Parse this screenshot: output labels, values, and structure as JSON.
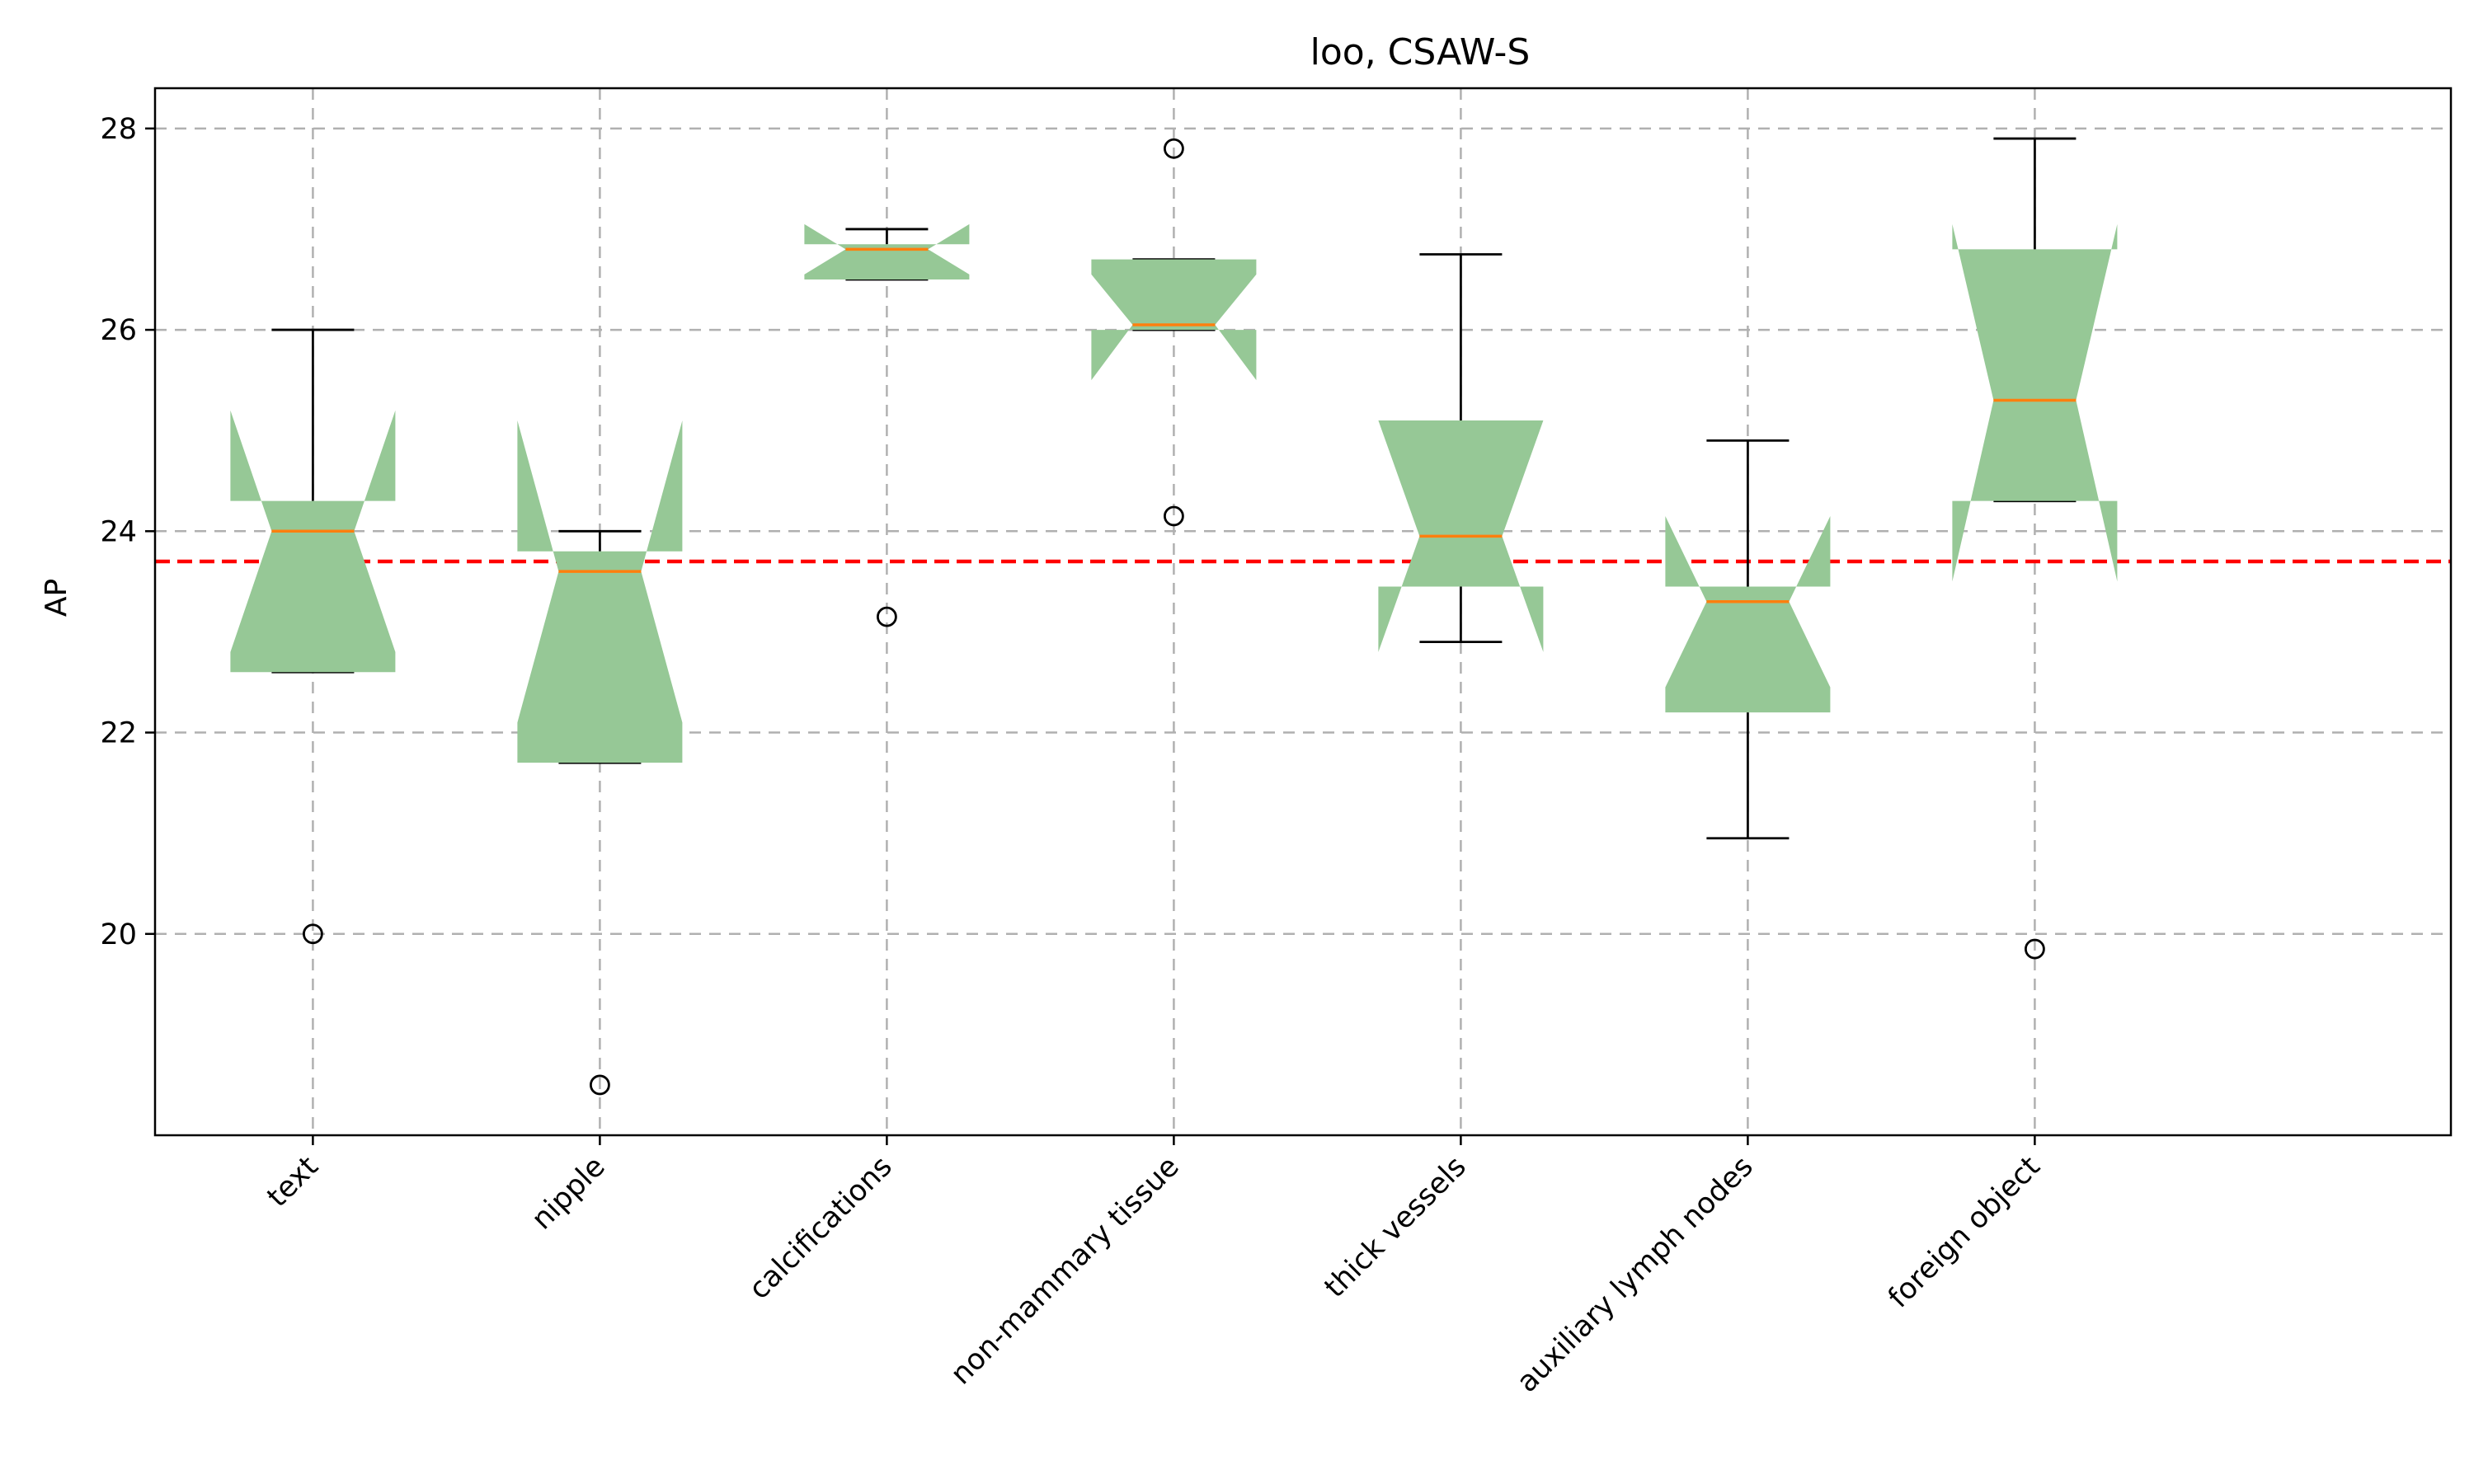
{
  "chart_data": {
    "type": "boxplot",
    "title": "loo, CSAW-S",
    "xlabel": "",
    "ylabel": "AP",
    "ylim": [
      18,
      28.4
    ],
    "yticks": [
      20,
      22,
      24,
      26,
      28
    ],
    "grid": true,
    "notched": true,
    "colors": {
      "box_fill": "#96c896",
      "median": "#ff7f0e",
      "reference_line": "#ff0000",
      "grid": "#b0b0b0"
    },
    "reference_line": {
      "y": 23.7,
      "style": "dashed"
    },
    "categories": [
      "text",
      "nipple",
      "calcifications",
      "non-mammary tissue",
      "thick vessels",
      "auxiliary lymph nodes",
      "foreign object"
    ],
    "boxes": [
      {
        "q1": 22.6,
        "median": 24.0,
        "q3": 24.3,
        "notch_low": 22.8,
        "notch_high": 25.2,
        "whisker_low": 22.6,
        "whisker_high": 26.0,
        "outliers": [
          20.0
        ]
      },
      {
        "q1": 21.7,
        "median": 23.6,
        "q3": 23.8,
        "notch_low": 22.1,
        "notch_high": 25.1,
        "whisker_low": 21.7,
        "whisker_high": 24.0,
        "outliers": [
          18.5
        ]
      },
      {
        "q1": 26.5,
        "median": 26.8,
        "q3": 26.85,
        "notch_low": 26.55,
        "notch_high": 27.05,
        "whisker_low": 26.5,
        "whisker_high": 27.0,
        "outliers": [
          23.15
        ]
      },
      {
        "q1": 26.0,
        "median": 26.05,
        "q3": 26.7,
        "notch_low": 25.5,
        "notch_high": 26.55,
        "whisker_low": 26.0,
        "whisker_high": 26.7,
        "outliers": [
          27.8,
          24.15
        ]
      },
      {
        "q1": 23.45,
        "median": 23.95,
        "q3": 25.1,
        "notch_low": 22.8,
        "notch_high": 25.1,
        "whisker_low": 22.9,
        "whisker_high": 26.75,
        "outliers": []
      },
      {
        "q1": 22.2,
        "median": 23.3,
        "q3": 23.45,
        "notch_low": 22.45,
        "notch_high": 24.15,
        "whisker_low": 20.95,
        "whisker_high": 24.9,
        "outliers": []
      },
      {
        "q1": 24.3,
        "median": 25.3,
        "q3": 26.8,
        "notch_low": 23.5,
        "notch_high": 27.05,
        "whisker_low": 24.3,
        "whisker_high": 27.9,
        "outliers": [
          19.85
        ]
      }
    ]
  }
}
